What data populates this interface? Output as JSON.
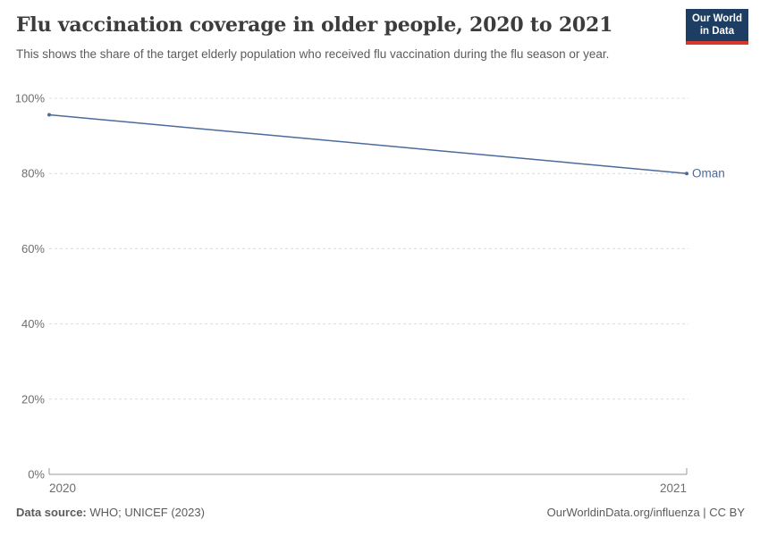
{
  "header": {
    "title": "Flu vaccination coverage in older people, 2020 to 2021",
    "subtitle": "This shows the share of the target elderly population who received flu vaccination during the flu season or year."
  },
  "logo": {
    "line1": "Our World",
    "line2": "in Data"
  },
  "chart_data": {
    "type": "line",
    "x": [
      2020,
      2021
    ],
    "xtick_labels": [
      "2020",
      "2021"
    ],
    "series": [
      {
        "name": "Oman",
        "values": [
          95.6,
          80
        ]
      }
    ],
    "title": "Flu vaccination coverage in older people, 2020 to 2021",
    "xlabel": "",
    "ylabel": "",
    "ylim": [
      0,
      100
    ],
    "yticks": [
      0,
      20,
      40,
      60,
      80,
      100
    ],
    "ytick_labels": [
      "0%",
      "20%",
      "40%",
      "60%",
      "80%",
      "100%"
    ],
    "grid": "horizontal-dashed",
    "legend": "line-end-label"
  },
  "footer": {
    "source_label": "Data source:",
    "source_value": " WHO; UNICEF (2023)",
    "credit": "OurWorldinData.org/influenza | CC BY"
  },
  "colors": {
    "line": "#4c6a9c",
    "entity_label": "#4c6a9c",
    "grid": "#dcdcdc",
    "axis": "#999999",
    "tick_text": "#6e6e6e",
    "title_text": "#3c3c3c",
    "subtitle_text": "#5b5b5b",
    "footer_text": "#5b5b5b",
    "logo_bg": "#1d3d63",
    "logo_stripe": "#d7382e",
    "logo_text": "#ffffff"
  }
}
